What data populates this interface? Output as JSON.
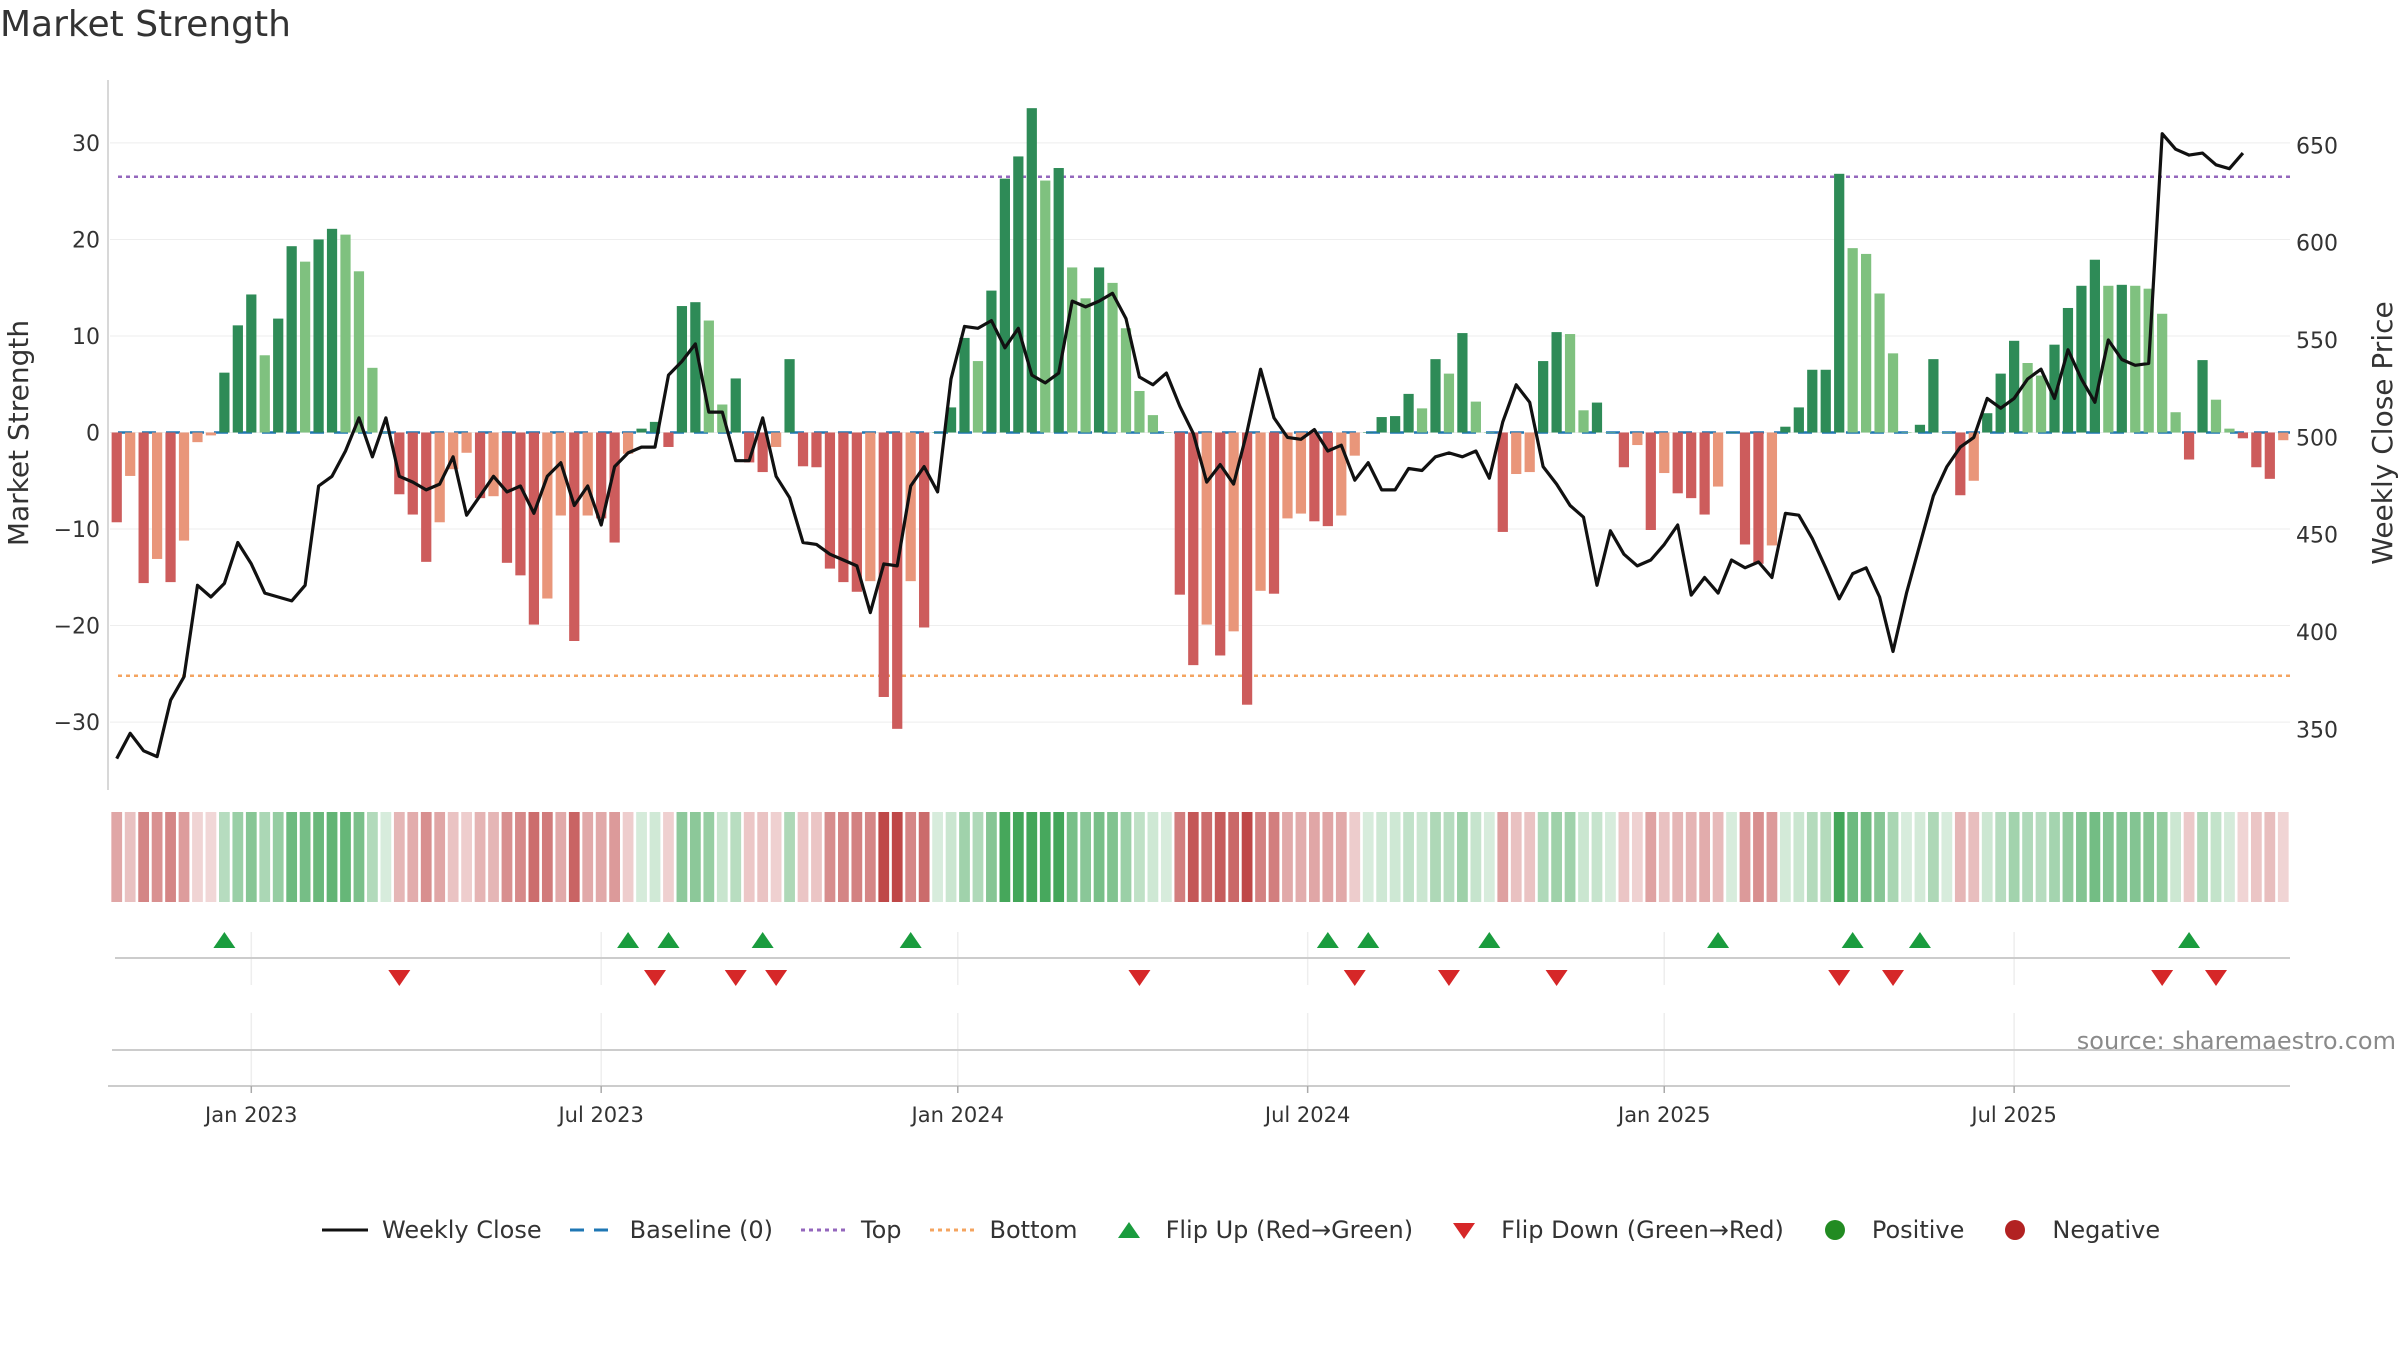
{
  "title": "Market Strength",
  "source": "source: sharemaestro.com",
  "colors": {
    "strong_green": "#2e8b57",
    "light_green": "#7fc17f",
    "strong_red": "#cd5c5c",
    "light_red": "#e9967a",
    "price_line": "#111111",
    "baseline": "#1f77b4",
    "top_line": "#9467bd",
    "bottom_line": "#f4a460",
    "flip_up": "#1a9c3e",
    "flip_down": "#d62728",
    "positive": "#228b22",
    "negative": "#b22222"
  },
  "legend": [
    {
      "key": "close",
      "label": "Weekly Close",
      "icon": "solid-line-icon"
    },
    {
      "key": "baseline",
      "label": "Baseline (0)",
      "icon": "dashed-line-icon"
    },
    {
      "key": "top",
      "label": "Top",
      "icon": "dotted-purple-line-icon"
    },
    {
      "key": "bottom",
      "label": "Bottom",
      "icon": "dotted-orange-line-icon"
    },
    {
      "key": "flip_up",
      "label": "Flip Up (Red→Green)",
      "icon": "triangle-up-icon"
    },
    {
      "key": "flip_down",
      "label": "Flip Down (Green→Red)",
      "icon": "triangle-down-icon"
    },
    {
      "key": "positive",
      "label": "Positive",
      "icon": "green-dot-icon"
    },
    {
      "key": "negative",
      "label": "Negative",
      "icon": "red-dot-icon"
    }
  ],
  "chart_data": {
    "type": "bar",
    "title": "Market Strength",
    "ylabel": "Market Strength",
    "y2label": "Weekly Close Price",
    "ylim": [
      -36,
      36
    ],
    "y2lim": [
      324,
      681
    ],
    "yticks": [
      30,
      20,
      10,
      0,
      -10,
      -20,
      -30
    ],
    "yticks_labels": [
      "30",
      "20",
      "10",
      "0",
      "−10",
      "−20",
      "−30"
    ],
    "y2ticks": [
      650,
      600,
      550,
      500,
      450,
      400,
      350
    ],
    "top_threshold": 26.5,
    "bottom_threshold": -25.2,
    "x_start": "2022-10-21",
    "x_labels": [
      {
        "label": "Jan 2023",
        "week": 10
      },
      {
        "label": "Jul 2023",
        "week": 36
      },
      {
        "label": "Jan 2024",
        "week": 62.5
      },
      {
        "label": "Jul 2024",
        "week": 88.5
      },
      {
        "label": "Jan 2025",
        "week": 115
      },
      {
        "label": "Jul 2025",
        "week": 141
      }
    ],
    "strength": [
      -9.3,
      -4.5,
      -15.6,
      -13.1,
      -15.5,
      -11.2,
      -1,
      -0.3,
      6.2,
      11.1,
      14.3,
      8,
      11.8,
      19.3,
      17.7,
      20,
      21.1,
      20.5,
      16.7,
      6.7,
      0,
      -6.4,
      -8.5,
      -13.4,
      -9.3,
      -3.8,
      -2.1,
      -6.8,
      -6.6,
      -13.5,
      -14.8,
      -19.9,
      -17.2,
      -8.6,
      -21.6,
      -8.6,
      -8.9,
      -11.4,
      -2.2,
      0.4,
      1.1,
      -1.5,
      13.1,
      13.5,
      11.6,
      2.9,
      5.6,
      -3.1,
      -4.1,
      -1.5,
      7.6,
      -3.5,
      -3.6,
      -14.1,
      -15.5,
      -16.5,
      -15.4,
      -27.4,
      -30.7,
      -15.4,
      -20.2,
      0,
      2.6,
      9.8,
      7.4,
      14.7,
      26.3,
      28.6,
      33.6,
      26.1,
      27.4,
      17.1,
      13.9,
      17.1,
      15.5,
      10.8,
      4.3,
      1.8,
      0,
      -16.8,
      -24.1,
      -19.9,
      -23.1,
      -20.6,
      -28.2,
      -16.4,
      -16.7,
      -8.9,
      -8.4,
      -9.2,
      -9.7,
      -8.6,
      -2.4,
      0,
      1.6,
      1.7,
      4,
      2.5,
      7.6,
      6.1,
      10.3,
      3.2,
      0,
      -10.3,
      -4.3,
      -4.1,
      7.4,
      10.4,
      10.2,
      2.3,
      3.1,
      0,
      -3.6,
      -1.3,
      -10.1,
      -4.2,
      -6.3,
      -6.8,
      -8.5,
      -5.6,
      0,
      -11.6,
      -13.6,
      -11.7,
      0.6,
      2.6,
      6.5,
      6.5,
      26.8,
      19.1,
      18.5,
      14.4,
      8.2,
      0,
      0.8,
      7.6,
      0,
      -6.5,
      -5,
      2,
      6.1,
      9.5,
      7.2,
      5.9,
      9.1,
      12.9,
      15.2,
      17.9,
      15.2,
      15.3,
      15.2,
      14.9,
      12.3,
      2.1,
      -2.8,
      7.5,
      3.4,
      0.4,
      -0.6,
      -3.6,
      -4.8,
      -0.8
    ],
    "close": [
      335,
      348,
      339,
      336,
      365,
      377,
      424,
      418,
      425,
      446,
      435,
      420,
      418,
      416,
      424,
      475,
      480,
      493,
      510,
      490,
      510,
      480,
      477,
      473,
      476,
      490,
      460,
      470,
      480,
      472,
      475,
      461,
      480,
      487,
      465,
      475,
      455,
      485,
      492,
      495,
      495,
      532,
      539,
      548,
      513,
      513,
      488,
      488,
      510,
      480,
      469,
      446,
      445,
      440,
      437,
      434,
      410,
      435,
      434,
      475,
      485,
      472,
      530,
      557,
      556,
      560,
      546,
      556,
      532,
      528,
      533,
      570,
      567,
      570,
      574,
      561,
      531,
      527,
      533,
      516,
      502,
      477,
      486,
      476,
      503,
      535,
      510,
      500,
      499,
      504,
      493,
      496,
      478,
      487,
      473,
      473,
      484,
      483,
      490,
      492,
      490,
      493,
      479,
      508,
      527,
      518,
      485,
      476,
      465,
      459,
      424,
      452,
      440,
      434,
      437,
      445,
      455,
      419,
      428,
      420,
      437,
      433,
      436,
      428,
      461,
      460,
      448,
      433,
      417,
      430,
      433,
      418,
      390,
      420,
      445,
      470,
      485,
      495,
      500,
      520,
      515,
      520,
      530,
      535,
      520,
      545,
      530,
      518,
      550,
      540,
      537,
      538,
      656,
      648,
      645,
      646,
      640,
      638,
      646
    ],
    "flips_up": [
      8,
      38,
      41,
      48,
      59,
      90,
      93,
      102,
      119,
      129,
      134,
      154
    ],
    "flips_down": [
      21,
      40,
      46,
      49,
      76,
      92,
      99,
      107,
      128,
      132,
      152,
      156
    ]
  }
}
